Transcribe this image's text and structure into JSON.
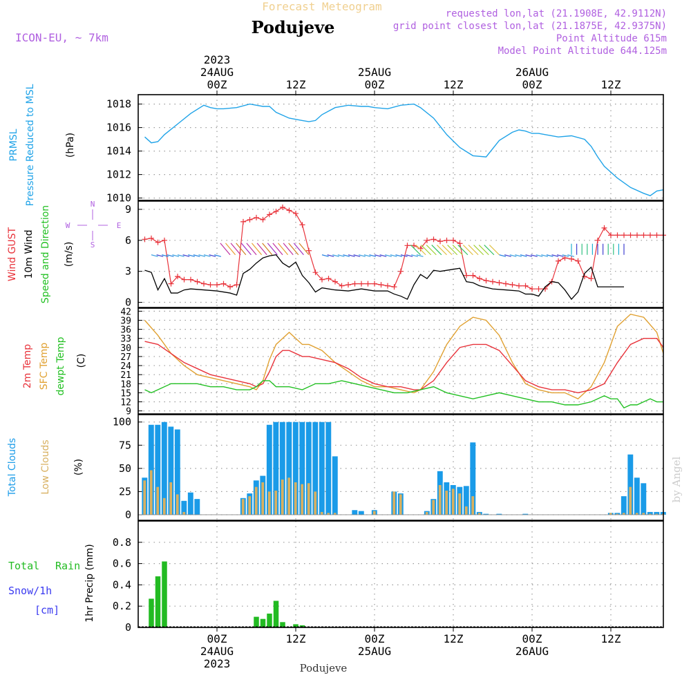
{
  "header": {
    "super_title": "Forecast Meteogram",
    "title": "Podujeve",
    "model": "ICON-EU, ~ 7km",
    "info_lines": [
      "requested lon,lat (21.1908E, 42.9112N)",
      "grid point closest lon,lat (21.1875E, 42.9375N)",
      "Point Altitude 615m",
      "Model Point Altitude 644.125m"
    ],
    "footer_title": "Podujeve",
    "watermark": "by Angel"
  },
  "colors": {
    "pressure": "#1fa3e8",
    "gust": "#e8323a",
    "wind": "#000000",
    "temp2m": "#e8323a",
    "sfc_temp": "#e0a030",
    "dewpt": "#22c022",
    "total_cloud": "#1a9be8",
    "low_cloud": "#d8b060",
    "rain": "#22bb22",
    "snow": "#3a3af0",
    "label_purple": "#b060e0",
    "super_title": "#f0d090"
  },
  "time_axis": {
    "top_labels": [
      {
        "line1": "2023",
        "line2": "24AUG",
        "line3": "00Z",
        "hour": 24
      },
      {
        "line1": "",
        "line2": "",
        "line3": "12Z",
        "hour": 36
      },
      {
        "line1": "",
        "line2": "25AUG",
        "line3": "00Z",
        "hour": 48
      },
      {
        "line1": "",
        "line2": "",
        "line3": "12Z",
        "hour": 60
      },
      {
        "line1": "",
        "line2": "26AUG",
        "line3": "00Z",
        "hour": 72
      },
      {
        "line1": "",
        "line2": "",
        "line3": "12Z",
        "hour": 84
      }
    ],
    "bottom_labels": [
      {
        "line1": "00Z",
        "line2": "24AUG",
        "line3": "2023",
        "hour": 24
      },
      {
        "line1": "12Z",
        "line2": "",
        "line3": "",
        "hour": 36
      },
      {
        "line1": "00Z",
        "line2": "25AUG",
        "line3": "",
        "hour": 48
      },
      {
        "line1": "12Z",
        "line2": "",
        "line3": "",
        "hour": 60
      },
      {
        "line1": "00Z",
        "line2": "26AUG",
        "line3": "",
        "hour": 72
      },
      {
        "line1": "12Z",
        "line2": "",
        "line3": "",
        "hour": 84
      }
    ]
  },
  "panels": {
    "pressure": {
      "labels": [
        "PRMSL",
        "Pressure Reduced to MSL",
        "(hPa)"
      ],
      "ticks": [
        "1010",
        "1012",
        "1014",
        "1016",
        "1018"
      ]
    },
    "wind": {
      "labels": [
        "Wind GUST",
        "10m Wind",
        "Speed and Direction",
        "(m/s)"
      ],
      "compass": {
        "n": "N",
        "s": "S",
        "e": "E",
        "w": "W"
      },
      "ticks": [
        "0",
        "3",
        "6",
        "9"
      ]
    },
    "temp": {
      "labels": [
        "2m Temp",
        "SFC Temp",
        "dewpt Temp",
        "(C)"
      ],
      "ticks": [
        "9",
        "12",
        "15",
        "18",
        "21",
        "24",
        "27",
        "30",
        "33",
        "36",
        "39",
        "42"
      ]
    },
    "cloud": {
      "labels": [
        "Total Clouds",
        "Low Clouds",
        "(%)"
      ],
      "ticks": [
        "0",
        "25",
        "50",
        "75",
        "100"
      ]
    },
    "precip": {
      "labels": [
        "Total",
        "Rain",
        "Snow/1h",
        "[cm]",
        "1hr Precip (mm)"
      ],
      "ticks": [
        "0",
        "0.2",
        "0.4",
        "0.6",
        "0.8"
      ]
    }
  },
  "chart_data": [
    {
      "type": "line",
      "name": "PRMSL",
      "ylim": [
        1009.8,
        1018.8
      ],
      "x_hours": [
        13,
        14,
        15,
        16,
        18,
        20,
        22,
        23,
        24,
        25,
        27,
        29,
        31,
        32,
        33,
        35,
        37,
        38,
        39,
        40,
        42,
        44,
        46,
        47,
        48,
        50,
        52,
        54,
        55,
        57,
        59,
        61,
        63,
        65,
        67,
        69,
        70,
        71,
        72,
        73,
        74,
        76,
        78,
        80,
        81,
        82,
        83,
        85,
        87,
        89,
        90,
        91,
        92
      ],
      "values": [
        1015.2,
        1014.7,
        1014.8,
        1015.4,
        1016.3,
        1017.2,
        1017.9,
        1017.7,
        1017.6,
        1017.6,
        1017.7,
        1018.0,
        1017.8,
        1017.8,
        1017.3,
        1016.8,
        1016.6,
        1016.5,
        1016.6,
        1017.1,
        1017.7,
        1017.9,
        1017.8,
        1017.8,
        1017.7,
        1017.6,
        1017.9,
        1018.0,
        1017.7,
        1016.8,
        1015.4,
        1014.3,
        1013.6,
        1013.5,
        1014.9,
        1015.6,
        1015.8,
        1015.7,
        1015.5,
        1015.5,
        1015.4,
        1015.2,
        1015.3,
        1015.0,
        1014.4,
        1013.5,
        1012.7,
        1011.7,
        1010.9,
        1010.4,
        1010.2,
        1010.6,
        1010.7
      ]
    },
    {
      "type": "line",
      "name": "Wind GUST",
      "ylim": [
        -0.5,
        9.8
      ],
      "x_hours": [
        13,
        14,
        15,
        16,
        17,
        18,
        19,
        20,
        21,
        22,
        23,
        24,
        25,
        26,
        27,
        28,
        29,
        30,
        31,
        32,
        33,
        34,
        35,
        36,
        37,
        38,
        39,
        40,
        41,
        42,
        43,
        44,
        45,
        46,
        47,
        48,
        49,
        50,
        51,
        52,
        53,
        54,
        55,
        56,
        57,
        58,
        59,
        60,
        61,
        62,
        63,
        64,
        65,
        66,
        67,
        68,
        69,
        70,
        71,
        72,
        73,
        74,
        75,
        76,
        77,
        78,
        79,
        80,
        81,
        82,
        83,
        84,
        85,
        86,
        87,
        88,
        89,
        90,
        91,
        92
      ],
      "values": [
        6.1,
        6.2,
        5.8,
        6.0,
        1.8,
        2.5,
        2.2,
        2.2,
        2.0,
        1.8,
        1.7,
        1.7,
        1.8,
        1.5,
        1.7,
        7.8,
        8.0,
        8.2,
        8.0,
        8.5,
        8.8,
        9.2,
        8.9,
        8.6,
        7.5,
        5.0,
        2.9,
        2.2,
        2.3,
        2.0,
        1.6,
        1.7,
        1.8,
        1.8,
        1.8,
        1.8,
        1.7,
        1.6,
        1.5,
        3.0,
        5.5,
        5.5,
        5.2,
        6.0,
        6.1,
        5.9,
        6.0,
        6.0,
        5.7,
        2.6,
        2.6,
        2.3,
        2.1,
        2.0,
        1.9,
        1.8,
        1.7,
        1.6,
        1.6,
        1.3,
        1.3,
        1.3,
        2.0,
        4.0,
        4.3,
        4.2,
        4.0,
        2.5,
        2.3,
        6.0,
        7.2,
        6.5,
        6.5,
        6.5,
        6.5,
        6.5,
        6.5,
        6.5,
        6.5,
        6.5
      ]
    },
    {
      "type": "line",
      "name": "10m Wind",
      "ylim": [
        -0.5,
        9.8
      ],
      "x_hours": [
        13,
        14,
        15,
        16,
        17,
        18,
        19,
        20,
        22,
        24,
        26,
        27,
        28,
        29,
        30,
        31,
        32,
        33,
        34,
        35,
        36,
        37,
        38,
        39,
        40,
        42,
        44,
        46,
        48,
        50,
        51,
        52,
        53,
        54,
        55,
        56,
        57,
        58,
        59,
        60,
        61,
        62,
        63,
        64,
        66,
        68,
        70,
        71,
        72,
        73,
        74,
        75,
        76,
        77,
        78,
        79,
        80,
        81,
        82,
        83,
        84,
        85,
        86
      ],
      "values": [
        3.1,
        2.9,
        1.2,
        2.3,
        0.9,
        0.9,
        1.2,
        1.3,
        1.2,
        1.1,
        0.9,
        0.7,
        2.8,
        3.2,
        3.8,
        4.3,
        4.5,
        4.6,
        3.8,
        3.4,
        3.9,
        2.6,
        1.9,
        1.0,
        1.4,
        1.2,
        1.1,
        1.3,
        1.1,
        1.1,
        0.8,
        0.6,
        0.3,
        1.7,
        2.7,
        2.3,
        3.1,
        3.0,
        3.1,
        3.2,
        3.3,
        2.0,
        1.9,
        1.6,
        1.3,
        1.2,
        1.1,
        0.8,
        0.8,
        0.6,
        1.5,
        2.0,
        1.9,
        1.2,
        0.3,
        1.0,
        2.8,
        3.4,
        1.5,
        1.5,
        1.5,
        1.5,
        1.5
      ]
    },
    {
      "type": "line",
      "name": "2m Temp",
      "ylim": [
        8,
        43
      ],
      "x_hours": [
        13,
        15,
        17,
        19,
        21,
        23,
        25,
        27,
        29,
        30,
        31,
        32,
        33,
        34,
        35,
        36,
        37,
        38,
        40,
        42,
        44,
        46,
        48,
        50,
        52,
        54,
        55,
        57,
        59,
        61,
        63,
        65,
        67,
        69,
        71,
        73,
        75,
        77,
        79,
        81,
        83,
        85,
        87,
        89,
        91,
        92
      ],
      "values": [
        32,
        31,
        28,
        25,
        23,
        21,
        20,
        19,
        18,
        17,
        18,
        22,
        27,
        29,
        29,
        28,
        27,
        27,
        26,
        25,
        23,
        20,
        18,
        17,
        17,
        16,
        16,
        19,
        25,
        30,
        31,
        31,
        29,
        24,
        19,
        17,
        16,
        16,
        15,
        16,
        18,
        25,
        31,
        33,
        33,
        30
      ],
      "sfc_temp_x": [
        13,
        15,
        17,
        19,
        21,
        23,
        25,
        27,
        29,
        30,
        31,
        32,
        33,
        34,
        35,
        36,
        37,
        38,
        40,
        42,
        44,
        46,
        48,
        50,
        52,
        54,
        55,
        57,
        59,
        61,
        63,
        65,
        67,
        69,
        71,
        73,
        75,
        77,
        79,
        81,
        83,
        85,
        87,
        89,
        91,
        92
      ],
      "sfc_temp": [
        39,
        34,
        28,
        24,
        21,
        20,
        19,
        18,
        17,
        16,
        19,
        26,
        31,
        33,
        35,
        33,
        31,
        31,
        29,
        25,
        22,
        19,
        17,
        17,
        16,
        15,
        16,
        22,
        31,
        37,
        40,
        39,
        34,
        25,
        18,
        16,
        15,
        15,
        13,
        17,
        25,
        37,
        41,
        40,
        35,
        28
      ],
      "dewpt_x": [
        13,
        14,
        15,
        17,
        19,
        21,
        23,
        25,
        27,
        29,
        30,
        31,
        32,
        33,
        35,
        37,
        39,
        41,
        43,
        45,
        47,
        49,
        51,
        53,
        55,
        57,
        59,
        61,
        63,
        65,
        67,
        69,
        71,
        73,
        75,
        77,
        79,
        81,
        83,
        84,
        85,
        86,
        87,
        88,
        89,
        90,
        91,
        92
      ],
      "dewpt": [
        16,
        15,
        16,
        18,
        18,
        18,
        17,
        17,
        16,
        16,
        17,
        19,
        19,
        17,
        17,
        16,
        18,
        18,
        19,
        18,
        17,
        16,
        15,
        15,
        16,
        17,
        15,
        14,
        13,
        14,
        15,
        14,
        13,
        12,
        12,
        11,
        11,
        12,
        14,
        13,
        13,
        10,
        11,
        11,
        12,
        13,
        12,
        12
      ]
    },
    {
      "type": "bar",
      "name": "Total Clouds",
      "ylim": [
        0,
        100
      ],
      "x_hours": [
        13,
        14,
        15,
        16,
        17,
        18,
        19,
        20,
        21,
        22,
        23,
        24,
        25,
        26,
        27,
        28,
        29,
        30,
        31,
        32,
        33,
        34,
        35,
        36,
        37,
        38,
        39,
        40,
        41,
        42,
        43,
        44,
        45,
        46,
        47,
        48,
        49,
        50,
        51,
        52,
        53,
        54,
        55,
        56,
        57,
        58,
        59,
        60,
        61,
        62,
        63,
        64,
        65,
        66,
        67,
        68,
        69,
        70,
        71,
        72,
        73,
        74,
        75,
        76,
        77,
        78,
        79,
        80,
        81,
        82,
        83,
        84,
        85,
        86,
        87,
        88,
        89,
        90,
        91,
        92
      ],
      "values": [
        40,
        97,
        97,
        100,
        95,
        92,
        15,
        24,
        17,
        0,
        0,
        0,
        0,
        0,
        0,
        18,
        23,
        37,
        42,
        97,
        100,
        100,
        100,
        100,
        100,
        100,
        100,
        100,
        100,
        63,
        0,
        0,
        5,
        4,
        0,
        5,
        0,
        0,
        25,
        23,
        0,
        0,
        0,
        4,
        17,
        47,
        35,
        32,
        30,
        31,
        78,
        3,
        1,
        0,
        1,
        0,
        0,
        0,
        1,
        0,
        0,
        0,
        0,
        0,
        0,
        0,
        0,
        0,
        0,
        0,
        0,
        2,
        2,
        20,
        65,
        40,
        34,
        3,
        3,
        3
      ],
      "low": [
        37,
        48,
        30,
        18,
        35,
        22,
        3,
        0,
        0,
        0,
        0,
        0,
        0,
        0,
        0,
        17,
        20,
        30,
        35,
        25,
        26,
        38,
        40,
        35,
        33,
        34,
        25,
        3,
        2,
        2,
        0,
        0,
        0,
        0,
        0,
        4,
        0,
        0,
        25,
        22,
        0,
        0,
        0,
        3,
        16,
        32,
        26,
        28,
        23,
        9,
        20,
        2,
        0,
        0,
        0,
        0,
        0,
        0,
        0,
        0,
        0,
        0,
        0,
        0,
        0,
        0,
        0,
        0,
        0,
        0,
        0,
        2,
        1,
        2,
        30,
        2,
        2,
        1,
        1,
        1
      ]
    },
    {
      "type": "bar",
      "name": "1hr Precip",
      "ylim": [
        0,
        1.0
      ],
      "x_hours": [
        14,
        15,
        16,
        17,
        30,
        31,
        32,
        33,
        34,
        35,
        36,
        37
      ],
      "values": [
        0.27,
        0.48,
        0.62,
        0.0,
        0.1,
        0.08,
        0.13,
        0.25,
        0.05,
        0.0,
        0.03,
        0.02
      ],
      "rain_x": [
        14,
        15,
        16,
        30,
        31,
        32,
        33,
        34,
        36,
        37
      ],
      "rain": [
        0.27,
        0.48,
        0.62,
        0.1,
        0.08,
        0.13,
        0.25,
        0.05,
        0.03,
        0.02
      ]
    }
  ]
}
